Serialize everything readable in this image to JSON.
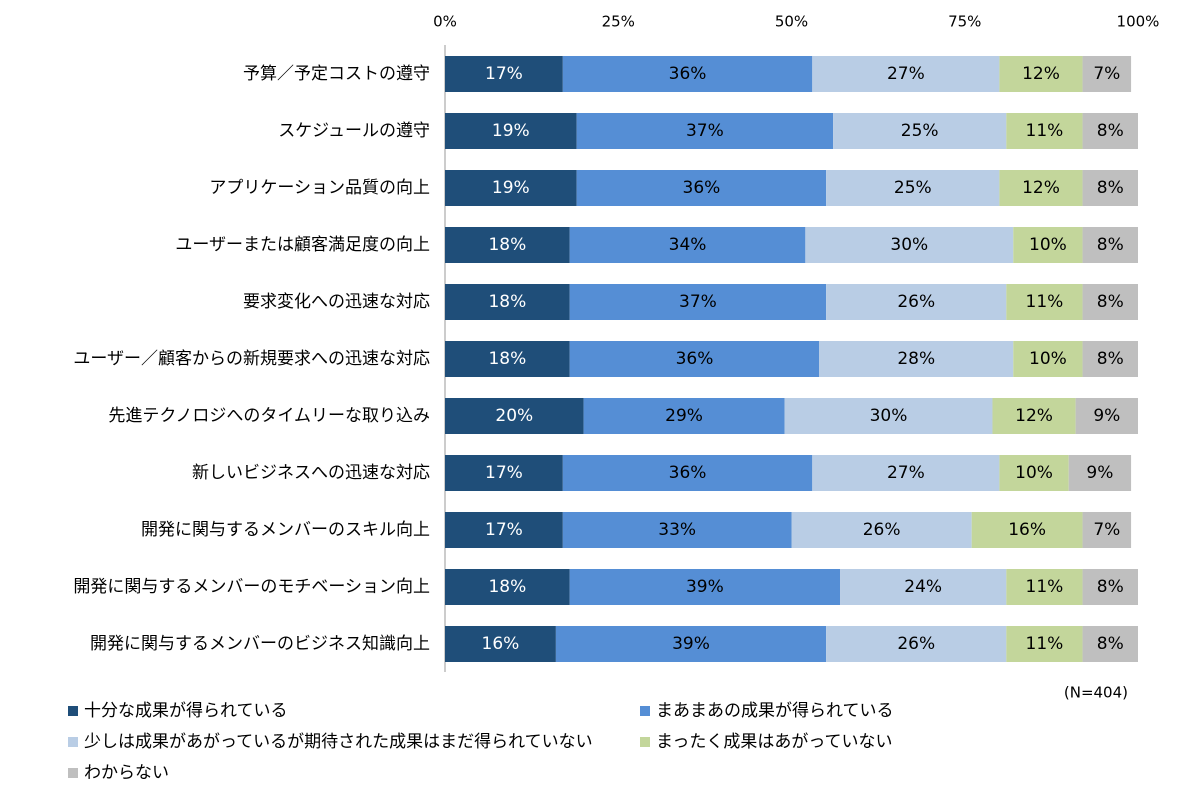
{
  "chart_data": {
    "type": "stacked_barh",
    "categories": [
      "予算／予定コストの遵守",
      "スケジュールの遵守",
      "アプリケーション品質の向上",
      "ユーザーまたは顧客満足度の向上",
      "要求変化への迅速な対応",
      "ユーザー／顧客からの新規要求への迅速な対応",
      "先進テクノロジへのタイムリーな取り込み",
      "新しいビジネスへの迅速な対応",
      "開発に関与するメンバーのスキル向上",
      "開発に関与するメンバーのモチベーション向上",
      "開発に関与するメンバーのビジネス知識向上"
    ],
    "series": [
      {
        "name": "十分な成果が得られている",
        "color": "#1f4e79",
        "values": [
          17,
          19,
          19,
          18,
          18,
          18,
          20,
          17,
          17,
          18,
          16
        ],
        "value_labels": [
          "17%",
          "19%",
          "19%",
          "18%",
          "18%",
          "18%",
          "20%",
          "17%",
          "17%",
          "18%",
          "16%"
        ]
      },
      {
        "name": "まあまあの成果が得られている",
        "color": "#558ed5",
        "values": [
          36,
          37,
          36,
          34,
          37,
          36,
          29,
          36,
          33,
          39,
          39
        ],
        "value_labels": [
          "36%",
          "37%",
          "36%",
          "34%",
          "37%",
          "36%",
          "29%",
          "36%",
          "33%",
          "39%",
          "39%"
        ]
      },
      {
        "name": "少しは成果があがっているが期待された成果はまだ得られていない",
        "color": "#b9cde5",
        "values": [
          27,
          25,
          25,
          30,
          26,
          28,
          30,
          27,
          26,
          24,
          26
        ],
        "value_labels": [
          "27%",
          "25%",
          "25%",
          "30%",
          "26%",
          "28%",
          "30%",
          "27%",
          "26%",
          "24%",
          "26%"
        ]
      },
      {
        "name": "まったく成果はあがっていない",
        "color": "#c3d69b",
        "values": [
          12,
          11,
          12,
          10,
          11,
          10,
          12,
          10,
          16,
          11,
          11
        ],
        "value_labels": [
          "12%",
          "11%",
          "12%",
          "10%",
          "11%",
          "10%",
          "12%",
          "10%",
          "16%",
          "11%",
          "11%"
        ]
      },
      {
        "name": "わからない",
        "color": "#bfbfbf",
        "values": [
          7,
          8,
          8,
          8,
          8,
          8,
          9,
          9,
          7,
          8,
          8
        ],
        "value_labels": [
          "7%",
          "8%",
          "8%",
          "8%",
          "8%",
          "8%",
          "9%",
          "9%",
          "7%",
          "8%",
          "8%"
        ]
      }
    ],
    "xlim": [
      0,
      100
    ],
    "xticks": [
      {
        "value": 0,
        "label": "0%"
      },
      {
        "value": 25,
        "label": "25%"
      },
      {
        "value": 50,
        "label": "50%"
      },
      {
        "value": 75,
        "label": "75%"
      },
      {
        "value": 100,
        "label": "100%"
      }
    ],
    "grid": false,
    "annotation": "(N=404)"
  }
}
